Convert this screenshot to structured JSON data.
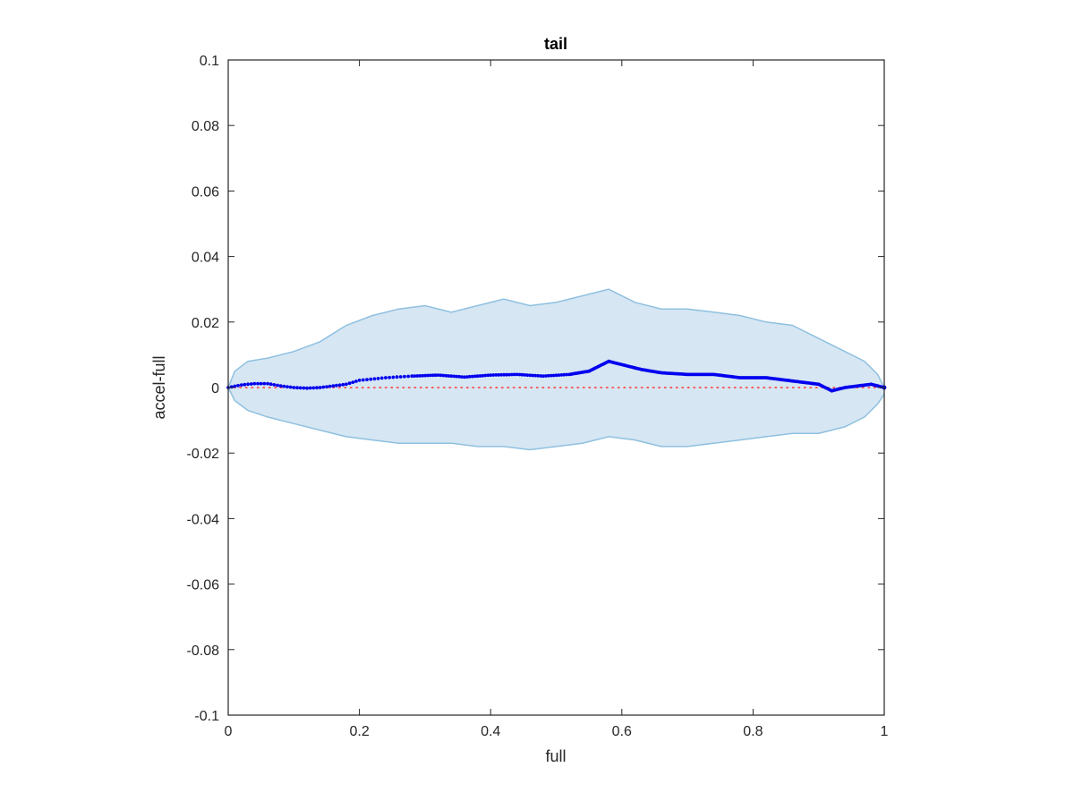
{
  "chart_data": {
    "type": "line",
    "title": "tail",
    "xlabel": "full",
    "ylabel": "accel-full",
    "xlim": [
      0,
      1
    ],
    "ylim": [
      -0.1,
      0.1
    ],
    "xticks": [
      0,
      0.2,
      0.4,
      0.6,
      0.8,
      1
    ],
    "xtick_labels": [
      "0",
      "0.2",
      "0.4",
      "0.6",
      "0.8",
      "1"
    ],
    "yticks": [
      0.1,
      0.08,
      0.06,
      0.04,
      0.02,
      0,
      -0.02,
      -0.04,
      -0.06,
      -0.08,
      -0.1
    ],
    "ytick_labels": [
      "0.1",
      "0.08",
      "0.06",
      "0.04",
      "0.02",
      "0",
      "-0.02",
      "-0.04",
      "-0.06",
      "-0.08",
      "-0.1"
    ],
    "grid": false,
    "box": true,
    "colors": {
      "band_fill": "#d6e6f3",
      "band_edge": "#8fc0e0",
      "mean": "#0000ee",
      "reference": "#ff3333",
      "axes": "#262626"
    },
    "band": {
      "x": [
        0,
        0.01,
        0.03,
        0.06,
        0.1,
        0.14,
        0.18,
        0.22,
        0.26,
        0.3,
        0.34,
        0.38,
        0.42,
        0.46,
        0.5,
        0.54,
        0.58,
        0.62,
        0.66,
        0.7,
        0.74,
        0.78,
        0.82,
        0.86,
        0.9,
        0.94,
        0.97,
        0.99,
        1
      ],
      "upper": [
        0,
        0.005,
        0.008,
        0.009,
        0.011,
        0.014,
        0.019,
        0.022,
        0.024,
        0.025,
        0.023,
        0.025,
        0.027,
        0.025,
        0.026,
        0.028,
        0.03,
        0.026,
        0.024,
        0.024,
        0.023,
        0.022,
        0.02,
        0.019,
        0.015,
        0.011,
        0.008,
        0.004,
        0
      ],
      "lower": [
        0,
        -0.004,
        -0.007,
        -0.009,
        -0.011,
        -0.013,
        -0.015,
        -0.016,
        -0.017,
        -0.017,
        -0.017,
        -0.018,
        -0.018,
        -0.019,
        -0.018,
        -0.017,
        -0.015,
        -0.016,
        -0.018,
        -0.018,
        -0.017,
        -0.016,
        -0.015,
        -0.014,
        -0.014,
        -0.012,
        -0.009,
        -0.005,
        -0.002
      ]
    },
    "series": [
      {
        "style": "dots",
        "x": [
          0,
          0.02,
          0.04,
          0.06,
          0.08,
          0.1,
          0.12,
          0.14,
          0.16,
          0.18,
          0.2,
          0.24,
          0.28,
          0.32,
          0.36,
          0.4,
          0.44,
          0.48,
          0.52,
          0.55,
          0.58,
          0.6,
          0.63,
          0.66,
          0.7,
          0.74,
          0.78,
          0.82,
          0.86,
          0.9,
          0.92,
          0.94,
          0.96,
          0.98,
          1
        ],
        "y": [
          0,
          0.0008,
          0.0012,
          0.0012,
          0.0005,
          0,
          -0.0002,
          0,
          0.0005,
          0.001,
          0.0022,
          0.003,
          0.0035,
          0.0038,
          0.0032,
          0.0038,
          0.004,
          0.0035,
          0.004,
          0.005,
          0.008,
          0.007,
          0.0055,
          0.0045,
          0.004,
          0.004,
          0.003,
          0.003,
          0.002,
          0.001,
          -0.001,
          0,
          0.0005,
          0.001,
          0
        ]
      },
      {
        "style": "dotted",
        "x": [
          0,
          1
        ],
        "y": [
          0,
          0
        ]
      }
    ]
  }
}
